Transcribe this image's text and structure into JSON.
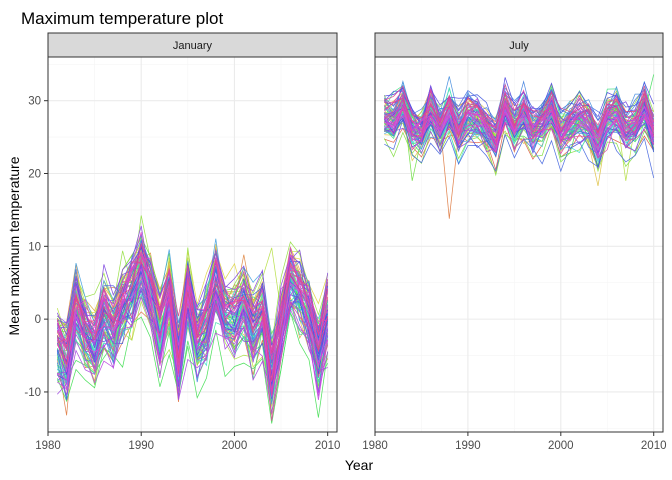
{
  "chart_data": {
    "type": "line",
    "title": "Maximum temperature plot",
    "xlabel": "Year",
    "ylabel": "Mean maximum temperature",
    "xlim": [
      1980,
      2011
    ],
    "ylim": [
      -15.5,
      36
    ],
    "x_ticks": [
      "1980",
      "1990",
      "2000",
      "2010"
    ],
    "y_ticks": [
      "-10",
      "0",
      "10",
      "20",
      "30"
    ],
    "grid": true,
    "legend": "none",
    "years": [
      1981,
      1982,
      1983,
      1984,
      1985,
      1986,
      1987,
      1988,
      1989,
      1990,
      1991,
      1992,
      1993,
      1994,
      1995,
      1996,
      1997,
      1998,
      1999,
      2000,
      2001,
      2002,
      2003,
      2004,
      2005,
      2006,
      2007,
      2008,
      2009,
      2010
    ],
    "series_count_per_panel": 85,
    "panels": [
      {
        "label": "January",
        "mean": [
          -3.2,
          -5.5,
          1.6,
          -2.0,
          -3.5,
          0.8,
          -1.3,
          2.0,
          4.2,
          7.5,
          3.6,
          -1.7,
          3.5,
          -6.0,
          3.8,
          -3.0,
          -0.9,
          5.0,
          0.5,
          -0.2,
          2.0,
          -1.5,
          1.0,
          -8.0,
          -1.2,
          5.5,
          3.5,
          1.0,
          -5.0,
          0.5
        ],
        "spread": 3.2,
        "extremes": [
          {
            "year": 1982,
            "value": -13.2
          },
          {
            "year": 1998,
            "value": 10.3
          },
          {
            "year": 2004,
            "value": 9.8
          },
          {
            "year": 2004,
            "value": -10.6
          },
          {
            "year": 1994,
            "value": -10.5
          }
        ]
      },
      {
        "label": "July",
        "mean": [
          27.5,
          27.2,
          29.3,
          26.0,
          25.5,
          28.7,
          26.0,
          28.5,
          25.8,
          27.7,
          27.6,
          26.2,
          24.5,
          29.0,
          26.3,
          28.2,
          26.0,
          27.0,
          28.9,
          25.5,
          26.5,
          27.5,
          26.8,
          24.0,
          27.5,
          28.2,
          26.0,
          26.5,
          28.8,
          25.5
        ],
        "spread": 2.0,
        "extremes": [
          {
            "year": 1988,
            "value": 13.8
          },
          {
            "year": 2004,
            "value": 18.3
          },
          {
            "year": 2007,
            "value": 19.0
          },
          {
            "year": 1984,
            "value": 19.0
          },
          {
            "year": 2010,
            "value": 33.6
          }
        ]
      }
    ],
    "colors": {
      "panel_background": "#ffffff",
      "grid_major": "#ebebeb",
      "grid_minor": "#f5f5f5",
      "strip_background": "#d9d9d9",
      "panel_border": "#333333"
    }
  }
}
